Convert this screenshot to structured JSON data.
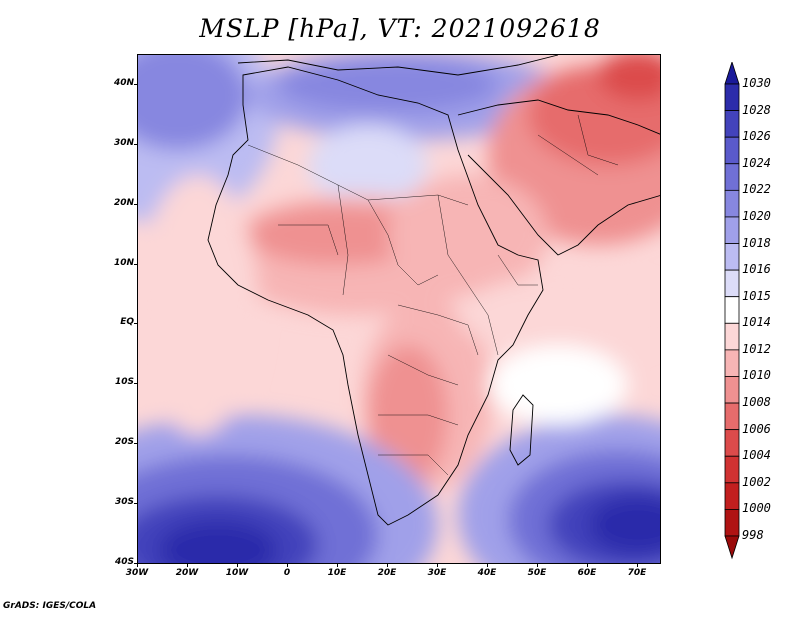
{
  "title": "MSLP [hPa], VT: 2021092618",
  "credit": "GrADS: IGES/COLA",
  "y_axis_ticks": [
    "40N",
    "30N",
    "20N",
    "10N",
    "EQ",
    "10S",
    "20S",
    "30S",
    "40S"
  ],
  "x_axis_ticks": [
    "30W",
    "20W",
    "10W",
    "0",
    "10E",
    "20E",
    "30E",
    "40E",
    "50E",
    "60E",
    "70E"
  ],
  "colorbar": {
    "levels": [
      "1030",
      "1028",
      "1026",
      "1024",
      "1022",
      "1020",
      "1018",
      "1016",
      "1015",
      "1014",
      "1012",
      "1010",
      "1008",
      "1006",
      "1004",
      "1002",
      "1000",
      "998"
    ],
    "colors": [
      "#1a1a9a",
      "#2c2caa",
      "#4343bb",
      "#5a5acb",
      "#7070d6",
      "#8787e0",
      "#a0a0e9",
      "#bcbcf2",
      "#dcdcf8",
      "#ffffff",
      "#fcd7d7",
      "#f7b5b5",
      "#ef9191",
      "#e66c6c",
      "#dc4b4b",
      "#d03232",
      "#c21f1f",
      "#b01313",
      "#9a0a0a"
    ]
  },
  "map": {
    "lon_range": [
      -30,
      75
    ],
    "lat_range": [
      -40,
      45
    ],
    "field": "mean sea level pressure",
    "valid_time": "2021092618"
  }
}
